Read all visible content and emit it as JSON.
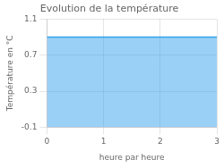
{
  "chart_data": {
    "type": "area",
    "title": "Evolution de la température",
    "xlabel": "heure par heure",
    "ylabel": "Température en °C",
    "x": [
      0,
      3
    ],
    "values": [
      0.9,
      0.9
    ],
    "xlim": [
      0,
      3
    ],
    "ylim": [
      -0.1,
      1.1
    ],
    "xticks": [
      0,
      1,
      2,
      3
    ],
    "yticks": [
      -0.1,
      0.3,
      0.7,
      1.1
    ],
    "grid": true
  }
}
